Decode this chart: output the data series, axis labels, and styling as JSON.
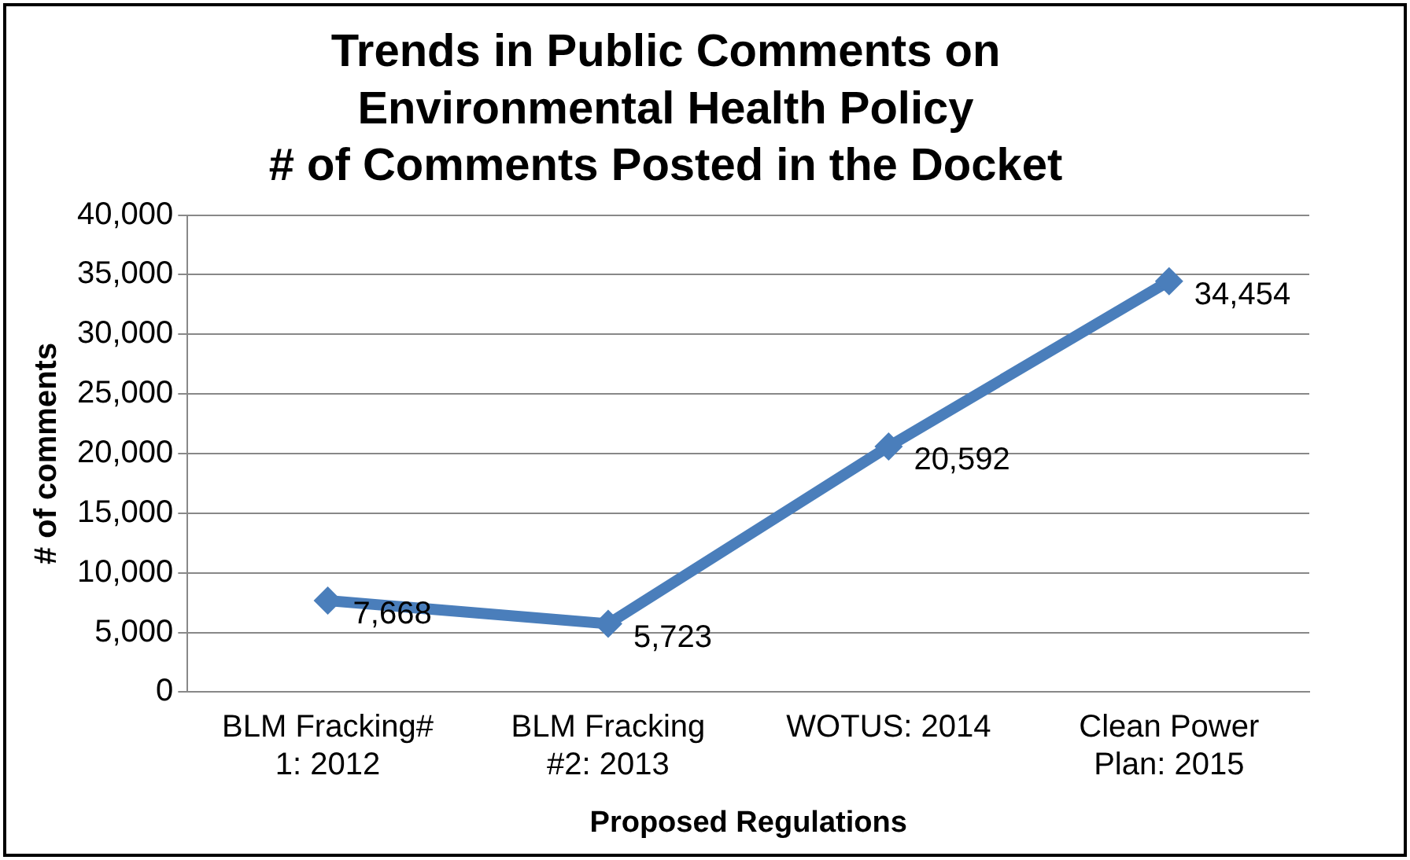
{
  "chart_data": {
    "type": "line",
    "title": "Trends in Public Comments on Environmental Health Policy",
    "subtitle": "# of Comments Posted in the Docket",
    "xlabel": "Proposed Regulations",
    "ylabel": "# of comments",
    "categories": [
      "BLM Fracking# 1: 2012",
      "BLM Fracking #2: 2013",
      "WOTUS: 2014",
      "Clean Power Plan: 2015"
    ],
    "series": [
      {
        "color": "#4a7ebb",
        "values": [
          7668,
          5723,
          20592,
          34454
        ],
        "value_labels": [
          "7,668",
          "5,723",
          "20,592",
          "34,454"
        ]
      }
    ],
    "ylim": [
      0,
      40000
    ],
    "yticks": [
      0,
      {
        "value": 5000,
        "label": "5,000"
      },
      {
        "value": 10000,
        "label": "10,000"
      },
      {
        "value": 15000,
        "label": "15,000"
      },
      {
        "value": 20000,
        "label": "20,000"
      },
      {
        "value": 25000,
        "label": "25,000"
      },
      {
        "value": 30000,
        "label": "30,000"
      },
      {
        "value": 35000,
        "label": "35,000"
      },
      {
        "value": 40000,
        "label": "40,000"
      }
    ],
    "grid": "y",
    "legend": false,
    "marker": "diamond",
    "line_style": "solid"
  }
}
